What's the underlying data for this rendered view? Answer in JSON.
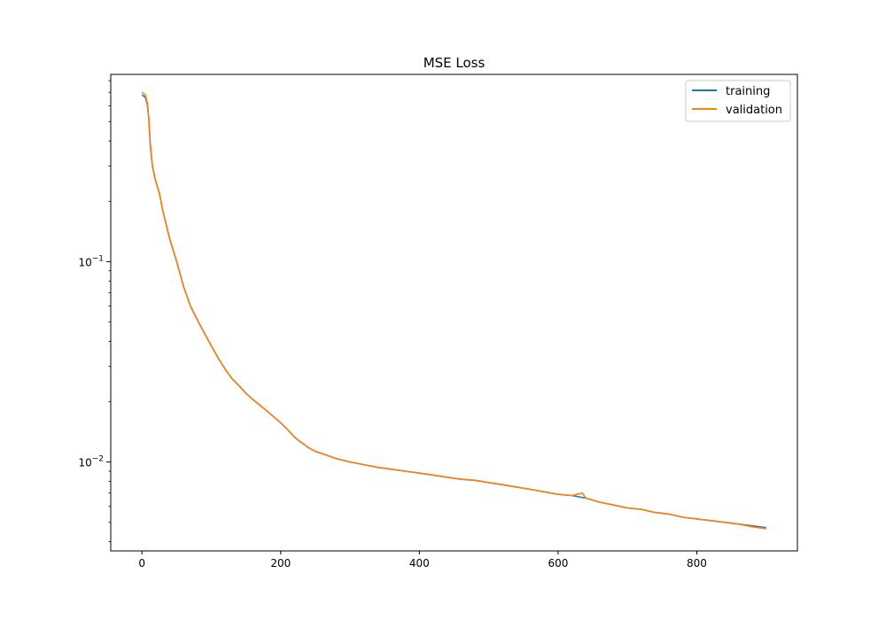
{
  "chart_data": {
    "type": "line",
    "title": "MSE Loss",
    "xlabel": "",
    "ylabel": "",
    "yscale": "log",
    "xlim": [
      -45,
      945
    ],
    "ylim": [
      0.0036,
      0.86
    ],
    "grid": false,
    "legend_position": "top-right",
    "x_ticks": [
      0,
      200,
      400,
      600,
      800
    ],
    "y_ticks": [
      {
        "value": 0.1,
        "base": "10",
        "exp": "−1"
      },
      {
        "value": 0.01,
        "base": "10",
        "exp": "−2"
      }
    ],
    "series": [
      {
        "name": "training",
        "color": "#1f77b4",
        "x": [
          0,
          5,
          8,
          10,
          12,
          15,
          20,
          25,
          30,
          40,
          50,
          60,
          70,
          80,
          90,
          100,
          110,
          120,
          130,
          140,
          150,
          160,
          170,
          180,
          190,
          200,
          210,
          220,
          230,
          240,
          250,
          260,
          270,
          280,
          290,
          300,
          320,
          340,
          360,
          380,
          400,
          420,
          440,
          460,
          480,
          500,
          520,
          540,
          560,
          580,
          600,
          620,
          640,
          660,
          680,
          700,
          720,
          740,
          760,
          780,
          800,
          820,
          840,
          860,
          880,
          900
        ],
        "y": [
          0.68,
          0.66,
          0.6,
          0.5,
          0.38,
          0.3,
          0.25,
          0.22,
          0.18,
          0.13,
          0.1,
          0.075,
          0.06,
          0.051,
          0.044,
          0.038,
          0.033,
          0.029,
          0.026,
          0.024,
          0.022,
          0.0205,
          0.0192,
          0.018,
          0.0168,
          0.0157,
          0.0145,
          0.0133,
          0.0125,
          0.0118,
          0.0113,
          0.011,
          0.0107,
          0.0104,
          0.0102,
          0.01,
          0.0097,
          0.0094,
          0.0092,
          0.009,
          0.0088,
          0.0086,
          0.0084,
          0.0082,
          0.0081,
          0.0079,
          0.0077,
          0.0075,
          0.0073,
          0.0071,
          0.0069,
          0.0068,
          0.0066,
          0.0063,
          0.0061,
          0.0059,
          0.0058,
          0.0056,
          0.0055,
          0.0053,
          0.0052,
          0.0051,
          0.005,
          0.0049,
          0.0048,
          0.0047
        ]
      },
      {
        "name": "validation",
        "color": "#ff7f0e",
        "x": [
          0,
          5,
          8,
          10,
          12,
          15,
          20,
          25,
          30,
          40,
          50,
          60,
          70,
          80,
          90,
          100,
          110,
          120,
          130,
          140,
          150,
          160,
          170,
          180,
          190,
          200,
          210,
          220,
          230,
          240,
          250,
          260,
          270,
          280,
          290,
          300,
          320,
          340,
          360,
          380,
          400,
          420,
          440,
          460,
          480,
          500,
          520,
          540,
          560,
          580,
          600,
          620,
          635,
          640,
          660,
          680,
          700,
          720,
          740,
          760,
          780,
          800,
          820,
          840,
          860,
          880,
          900
        ],
        "y": [
          0.7,
          0.68,
          0.61,
          0.51,
          0.39,
          0.3,
          0.25,
          0.22,
          0.18,
          0.13,
          0.1,
          0.075,
          0.06,
          0.051,
          0.044,
          0.038,
          0.033,
          0.029,
          0.026,
          0.024,
          0.022,
          0.0205,
          0.0192,
          0.018,
          0.0168,
          0.0157,
          0.0145,
          0.0133,
          0.0125,
          0.0118,
          0.0113,
          0.011,
          0.0107,
          0.0104,
          0.0102,
          0.01,
          0.0097,
          0.0094,
          0.0092,
          0.009,
          0.0088,
          0.0086,
          0.0084,
          0.0082,
          0.0081,
          0.0079,
          0.0077,
          0.0075,
          0.0073,
          0.0071,
          0.0069,
          0.0068,
          0.007,
          0.0066,
          0.0063,
          0.0061,
          0.0059,
          0.0058,
          0.0056,
          0.0055,
          0.0053,
          0.0052,
          0.0051,
          0.005,
          0.0049,
          0.00475,
          0.00465
        ]
      }
    ]
  }
}
